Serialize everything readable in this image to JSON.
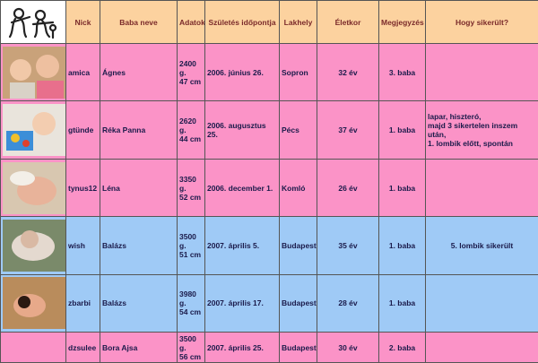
{
  "headers": {
    "nick": "Nick",
    "name": "Baba neve",
    "data": "Adatok",
    "birth": "Születés időpontja",
    "place": "Lakhely",
    "age": "Életkor",
    "note": "Megjegyzés",
    "success": "Hogy sikerült?"
  },
  "rows": [
    {
      "nick": "amica",
      "name": "Ágnes",
      "weight": "2400 g.",
      "length": "47 cm",
      "birth": "2006. június 26.",
      "place": "Sopron",
      "age": "32 év",
      "note": "3. baba",
      "success": ""
    },
    {
      "nick": "gtünde",
      "name": "Réka Panna",
      "weight": "2620 g.",
      "length": "44 cm",
      "birth": "2006. augusztus 25.",
      "place": "Pécs",
      "age": "37 év",
      "note": "1. baba",
      "success_lines": [
        "lapar, hiszteró,",
        "majd 3 sikertelen inszem után,",
        "1. lombik előtt, spontán"
      ]
    },
    {
      "nick": "tynus12",
      "name": "Léna",
      "weight": "3350 g.",
      "length": "52 cm",
      "birth": "2006. december 1.",
      "place": "Komló",
      "age": "26 év",
      "note": "1. baba",
      "success": ""
    },
    {
      "nick": "wish",
      "name": "Balázs",
      "weight": "3500 g.",
      "length": "51 cm",
      "birth": "2007. április 5.",
      "place": "Budapest",
      "age": "35 év",
      "note": "1. baba",
      "success": "5. lombik sikerült"
    },
    {
      "nick": "zbarbi",
      "name": "Balázs",
      "weight": "3980 g.",
      "length": "54 cm",
      "birth": "2007. április 17.",
      "place": "Budapest",
      "age": "28 év",
      "note": "1. baba",
      "success": ""
    },
    {
      "nick": "dzsulee",
      "name": "Bora Ajsa",
      "weight": "3500 g.",
      "length": "56 cm",
      "birth": "2007. április 25.",
      "place": "Budapest",
      "age": "30 év",
      "note": "2. baba",
      "success": ""
    }
  ],
  "colors": {
    "header_bg": "#fcd29f",
    "pink_row": "#fb93c7",
    "blue_row": "#9fcaf6"
  }
}
